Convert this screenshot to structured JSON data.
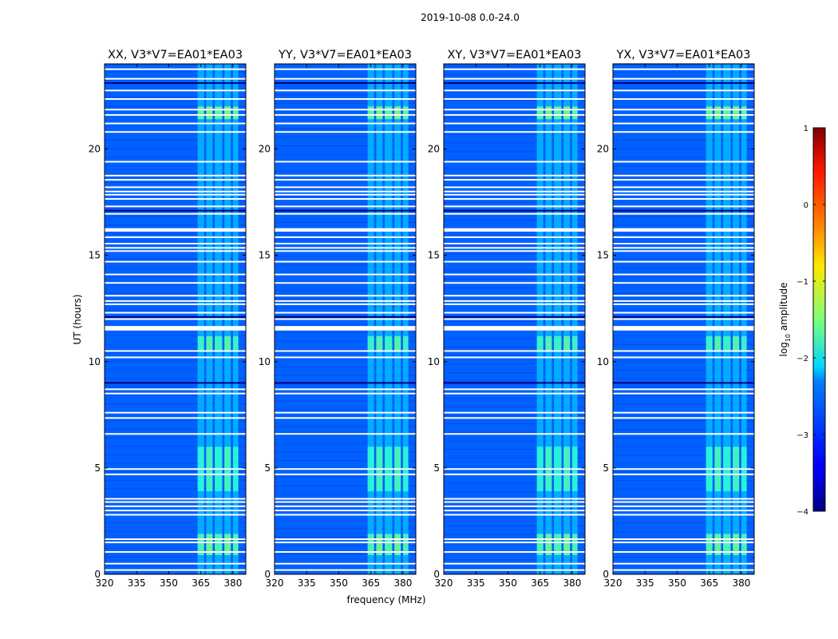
{
  "chart_data": {
    "type": "heatmap",
    "title": "2019-10-08 0.0-24.0",
    "xlabel": "frequency (MHz)",
    "ylabel": "UT (hours)",
    "xlim": [
      320,
      386
    ],
    "ylim": [
      0,
      24
    ],
    "x_ticks": [
      "320",
      "335",
      "350",
      "365",
      "380"
    ],
    "x_tick_values": [
      320,
      335,
      350,
      365,
      380
    ],
    "y_ticks": [
      "0",
      "5",
      "10",
      "15",
      "20"
    ],
    "y_tick_values": [
      0,
      5,
      10,
      15,
      20
    ],
    "panels": [
      {
        "name": "XX",
        "title": "XX, V3*V7=EA01*EA03"
      },
      {
        "name": "YY",
        "title": "YY, V3*V7=EA01*EA03"
      },
      {
        "name": "XY",
        "title": "XY, V3*V7=EA01*EA03"
      },
      {
        "name": "YX",
        "title": "YX, V3*V7=EA01*EA03"
      }
    ],
    "colorbar": {
      "label": "log10 amplitude",
      "label_prefix": "log",
      "label_sub": "10",
      "label_suffix": " amplitude",
      "min": -4,
      "max": 1,
      "ticks": [
        "1",
        "0",
        "−1",
        "−2",
        "−3",
        "−4"
      ],
      "tick_values": [
        1,
        0,
        -1,
        -2,
        -3,
        -4
      ],
      "colormap": "jet"
    },
    "background_level": -2.9,
    "rfi_bands_mhz": [
      [
        363.5,
        366.5
      ],
      [
        367.5,
        370.5
      ],
      [
        371.5,
        375.0
      ],
      [
        376.0,
        379.0
      ],
      [
        380.0,
        382.5
      ]
    ],
    "flagged_ut_hours": [
      0.2,
      0.5,
      1.05,
      1.5,
      1.65,
      2.8,
      3.0,
      3.2,
      3.4,
      3.55,
      4.7,
      4.95,
      6.6,
      7.35,
      7.6,
      8.5,
      8.7,
      10.2,
      10.5,
      11.5,
      11.55,
      11.6,
      12.0,
      12.3,
      12.7,
      12.85,
      13.1,
      13.7,
      14.1,
      14.7,
      15.2,
      15.35,
      15.55,
      15.85,
      16.15,
      16.2,
      16.95,
      17.3,
      17.65,
      17.85,
      18.0,
      18.2,
      18.55,
      18.75,
      19.4,
      20.8,
      21.2,
      21.6,
      21.85,
      22.35,
      22.75,
      23.3,
      23.75
    ]
  }
}
